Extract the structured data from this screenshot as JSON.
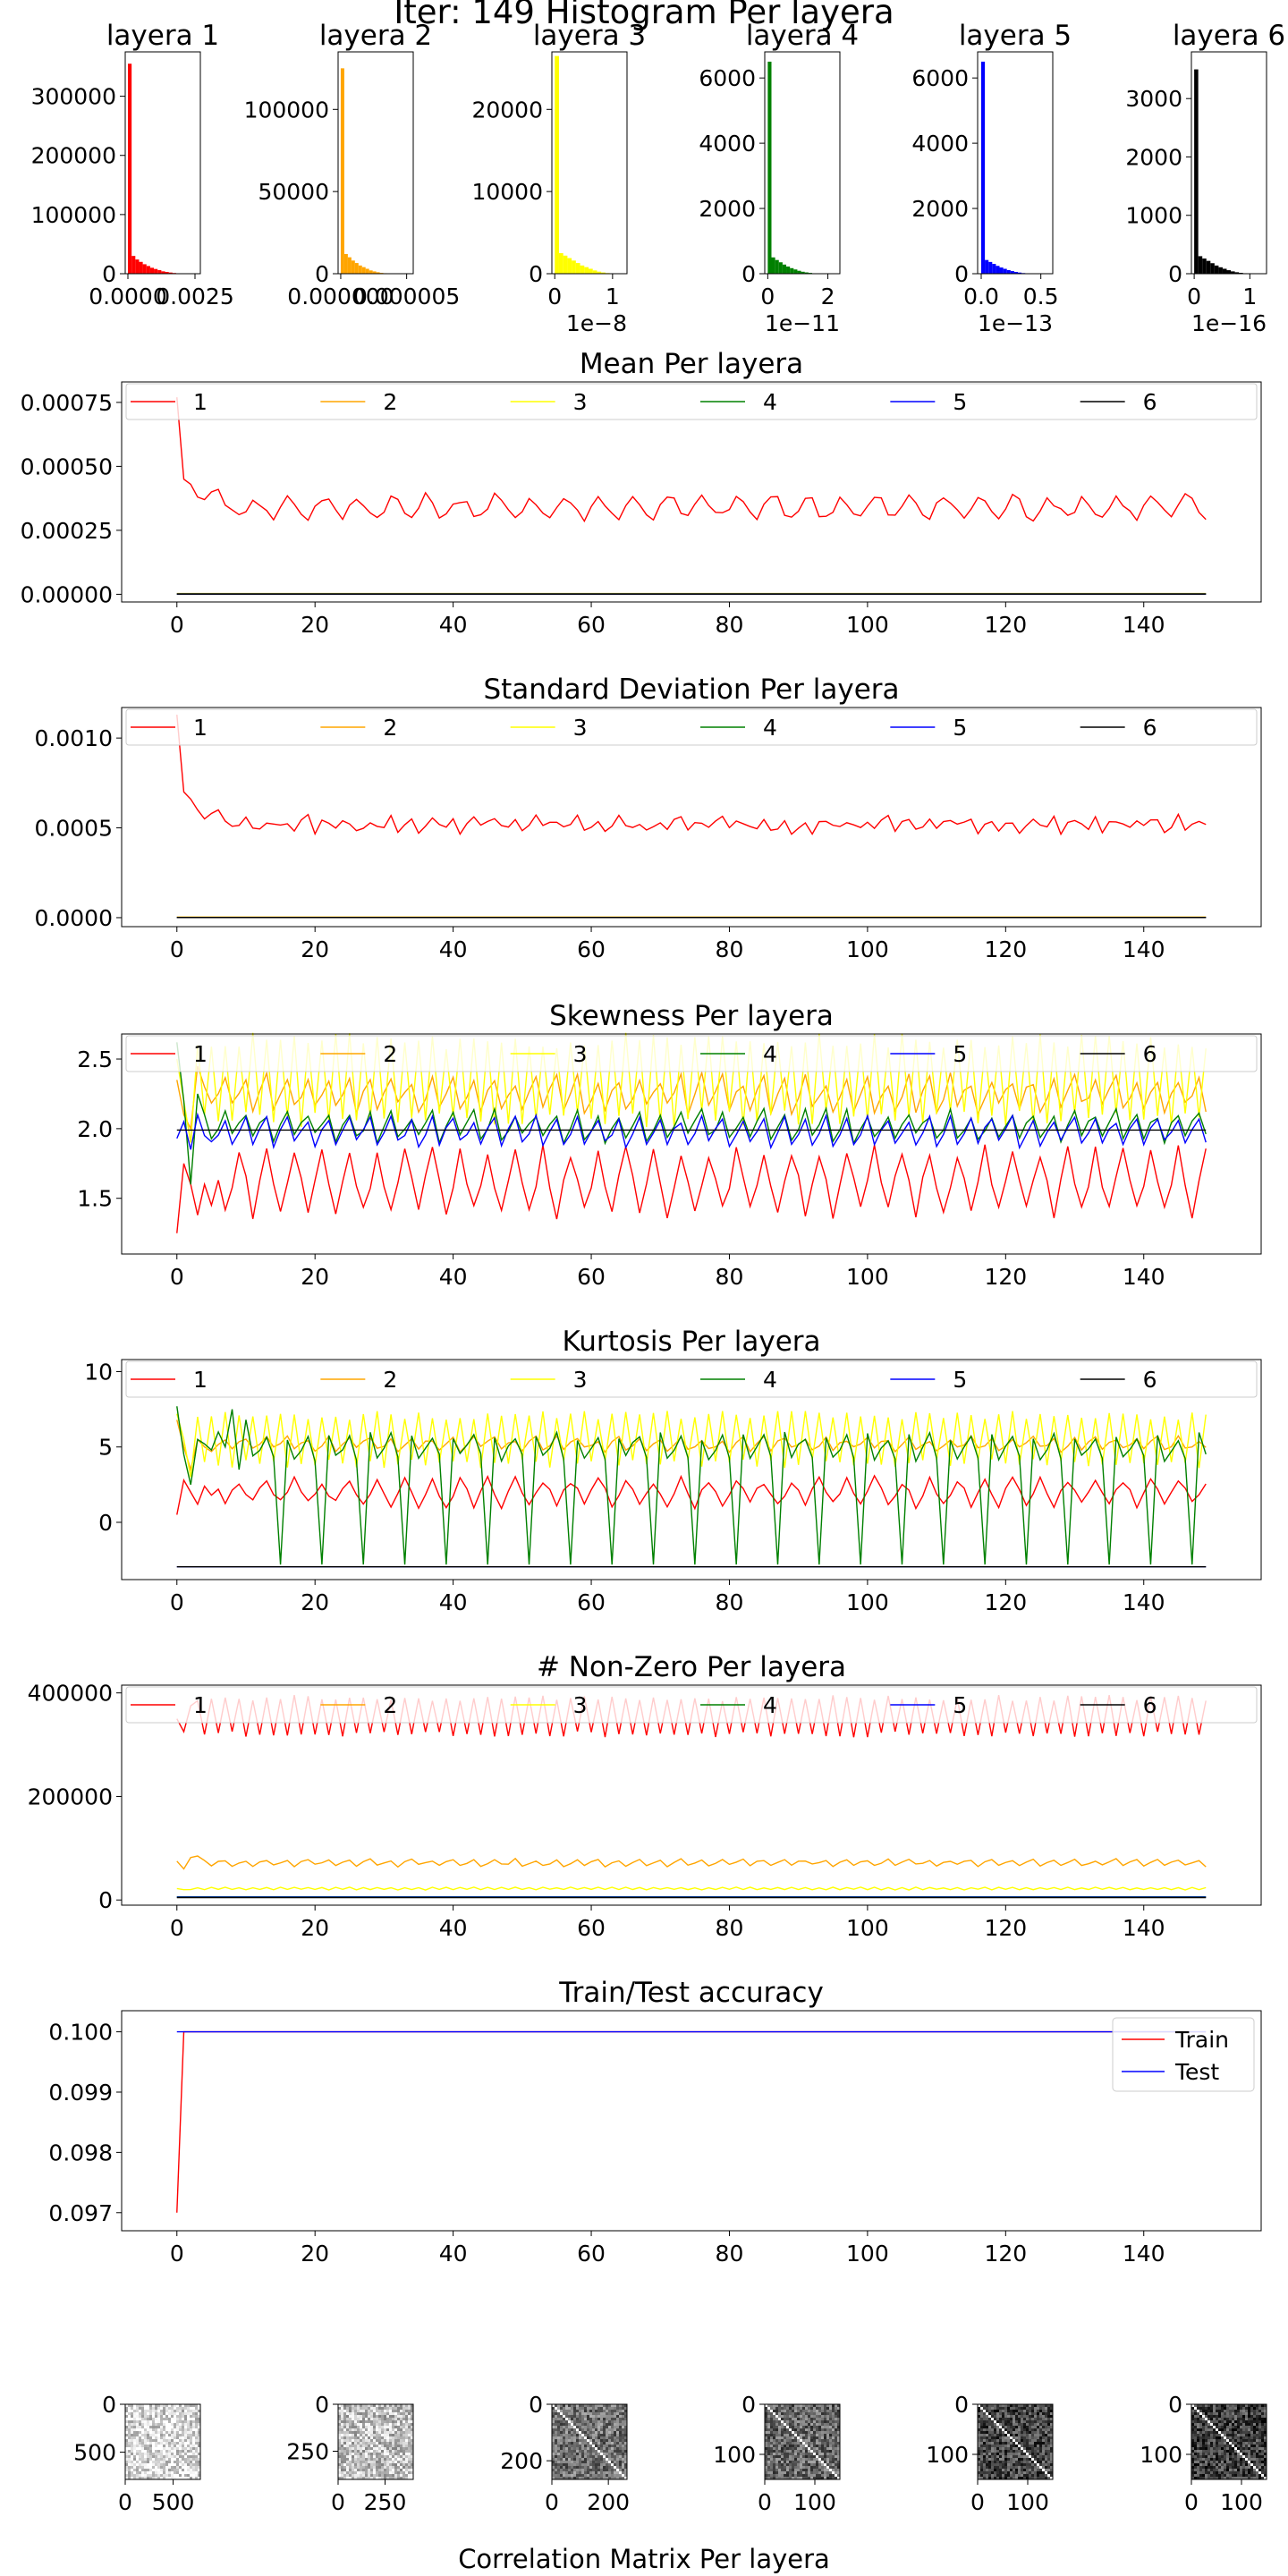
{
  "suptitle": "Iter: 149 Histogram Per layera",
  "bottom_title": "Correlation Matrix Per layera",
  "layer_colors": [
    "#ff0000",
    "#ffa500",
    "#ffff00",
    "#008000",
    "#0000ff",
    "#000000"
  ],
  "chart_data": [
    {
      "type": "histogram",
      "panels": [
        {
          "title": "layera 1",
          "color": "#ff0000",
          "xlim": [
            -0.0001,
            0.0027
          ],
          "ylim": [
            0,
            375000
          ],
          "yticks": [
            0,
            100000,
            200000,
            300000
          ],
          "ytick_labels": [
            "0",
            "100000",
            "200000",
            "300000"
          ],
          "xticks": [
            0.0,
            0.0025
          ],
          "xtick_labels": [
            "0.0000",
            "0.0025"
          ],
          "offset_label": "",
          "hist_x_max": 0.0018,
          "peak": 355000,
          "tail": [
            30000,
            24000,
            20000,
            16000,
            13000,
            10000,
            8000,
            6000,
            4000,
            3000,
            2000,
            1200
          ]
        },
        {
          "title": "layera 2",
          "color": "#ffa500",
          "xlim": [
            -2e-07,
            5.5e-06
          ],
          "ylim": [
            0,
            135000
          ],
          "yticks": [
            0,
            50000,
            100000
          ],
          "ytick_labels": [
            "0",
            "50000",
            "100000"
          ],
          "xticks": [
            0.0,
            5e-06
          ],
          "xtick_labels": [
            "0.000000",
            "0.000005"
          ],
          "offset_label": "",
          "hist_x_max": 3.5e-06,
          "peak": 125000,
          "tail": [
            12000,
            10000,
            8000,
            6500,
            5000,
            4000,
            3000,
            2000,
            1400,
            900,
            500,
            300
          ]
        },
        {
          "title": "layera 3",
          "color": "#ffff00",
          "xlim": [
            -0.05,
            1.25
          ],
          "ylim": [
            0,
            27000
          ],
          "yticks": [
            0,
            10000,
            20000
          ],
          "ytick_labels": [
            "0",
            "10000",
            "20000"
          ],
          "xticks": [
            0,
            1
          ],
          "xtick_labels": [
            "0",
            "1"
          ],
          "offset_label": "1e−8",
          "hist_x_max": 0.95,
          "peak": 26500,
          "tail": [
            2500,
            2200,
            1900,
            1600,
            1300,
            1000,
            800,
            600,
            400,
            250,
            150,
            80
          ]
        },
        {
          "title": "layera 4",
          "color": "#008000",
          "xlim": [
            -0.1,
            2.4
          ],
          "ylim": [
            0,
            6800
          ],
          "yticks": [
            0,
            2000,
            4000,
            6000
          ],
          "ytick_labels": [
            "0",
            "2000",
            "4000",
            "6000"
          ],
          "xticks": [
            0,
            2
          ],
          "xtick_labels": [
            "0",
            "2"
          ],
          "offset_label": "1e−11",
          "hist_x_max": 1.6,
          "peak": 6500,
          "tail": [
            500,
            420,
            350,
            280,
            220,
            170,
            130,
            90,
            60,
            40,
            25,
            12
          ]
        },
        {
          "title": "layera 5",
          "color": "#0000ff",
          "xlim": [
            -0.03,
            0.6
          ],
          "ylim": [
            0,
            6800
          ],
          "yticks": [
            0,
            2000,
            4000,
            6000
          ],
          "ytick_labels": [
            "0",
            "2000",
            "4000",
            "6000"
          ],
          "xticks": [
            0.0,
            0.5
          ],
          "xtick_labels": [
            "0.0",
            "0.5"
          ],
          "offset_label": "1e−13",
          "hist_x_max": 0.4,
          "peak": 6500,
          "tail": [
            420,
            360,
            300,
            240,
            190,
            150,
            110,
            80,
            55,
            35,
            20,
            10
          ]
        },
        {
          "title": "layera 6",
          "color": "#000000",
          "xlim": [
            -0.05,
            1.3
          ],
          "ylim": [
            0,
            3800
          ],
          "yticks": [
            0,
            1000,
            2000,
            3000
          ],
          "ytick_labels": [
            "0",
            "1000",
            "2000",
            "3000"
          ],
          "xticks": [
            0,
            1
          ],
          "xtick_labels": [
            "0",
            "1"
          ],
          "offset_label": "1e−16",
          "hist_x_max": 0.95,
          "peak": 3500,
          "tail": [
            300,
            260,
            220,
            180,
            140,
            110,
            85,
            60,
            40,
            25,
            15,
            8
          ]
        }
      ]
    },
    {
      "type": "line",
      "title": "Mean Per layera",
      "ylim": [
        -3e-05,
        0.00083
      ],
      "yticks": [
        0,
        0.00025,
        0.0005,
        0.00075
      ],
      "ytick_labels": [
        "0.00000",
        "0.00025",
        "0.00050",
        "0.00075"
      ],
      "legend": [
        "1",
        "2",
        "3",
        "4",
        "5",
        "6"
      ],
      "series": [
        {
          "name": "1",
          "start": [
            0.00077,
            0.00045,
            0.00043,
            0.00038,
            0.00037,
            0.0004,
            0.00041
          ],
          "base": 0.00034,
          "amp": 4e-05,
          "period": 5,
          "noise": 2e-05
        },
        {
          "name": "2",
          "const": 3e-06
        },
        {
          "name": "3",
          "const": 2e-06
        },
        {
          "name": "4",
          "const": 1e-06
        },
        {
          "name": "5",
          "const": 1e-06
        },
        {
          "name": "6",
          "const": 1e-06
        }
      ]
    },
    {
      "type": "line",
      "title": "Standard Deviation Per layera",
      "ylim": [
        -5e-05,
        0.00117
      ],
      "yticks": [
        0,
        0.0005,
        0.001
      ],
      "ytick_labels": [
        "0.0000",
        "0.0005",
        "0.0010"
      ],
      "legend": [
        "1",
        "2",
        "3",
        "4",
        "5",
        "6"
      ],
      "series": [
        {
          "name": "1",
          "start": [
            0.00113,
            0.0007,
            0.00066,
            0.0006,
            0.00055,
            0.00058,
            0.0006
          ],
          "base": 0.00052,
          "amp": 3e-05,
          "period": 3,
          "noise": 3e-05
        },
        {
          "name": "2",
          "const": 3e-06
        },
        {
          "name": "3",
          "const": 2e-06
        },
        {
          "name": "4",
          "const": 1e-06
        },
        {
          "name": "5",
          "const": 1e-06
        },
        {
          "name": "6",
          "const": 1e-06
        }
      ]
    },
    {
      "type": "line",
      "title": "Skewness Per layera",
      "ylim": [
        1.1,
        2.68
      ],
      "yticks": [
        1.5,
        2.0,
        2.5
      ],
      "ytick_labels": [
        "1.5",
        "2.0",
        "2.5"
      ],
      "legend": [
        "1",
        "2",
        "3",
        "4",
        "5",
        "6"
      ],
      "series": [
        {
          "name": "1",
          "start": [
            1.25,
            1.75,
            1.6,
            1.38,
            1.6,
            1.45
          ],
          "base": 1.62,
          "amp": 0.22,
          "period": 4,
          "noise": 0.05
        },
        {
          "name": "2",
          "start": [
            2.35,
            2.1,
            2.0,
            2.45,
            2.3
          ],
          "base": 2.25,
          "amp": 0.12,
          "period": 3,
          "noise": 0.05
        },
        {
          "name": "3",
          "start": [
            2.5,
            2.2,
            1.9,
            2.6,
            2.1
          ],
          "base": 2.35,
          "amp": 0.28,
          "period": 2,
          "noise": 0.06
        },
        {
          "name": "4",
          "start": [
            2.62,
            2.2,
            1.6,
            2.25,
            2.1
          ],
          "base": 2.02,
          "amp": 0.1,
          "period": 3,
          "noise": 0.04
        },
        {
          "name": "5",
          "start": [
            1.93,
            2.05,
            1.85,
            2.1,
            1.95
          ],
          "base": 1.98,
          "amp": 0.1,
          "period": 3,
          "noise": 0.03
        },
        {
          "name": "6",
          "const": 1.99
        }
      ]
    },
    {
      "type": "line",
      "title": "Kurtosis Per layera",
      "ylim": [
        -3.8,
        10.8
      ],
      "yticks": [
        0,
        5,
        10
      ],
      "ytick_labels": [
        "0",
        "5",
        "10"
      ],
      "legend": [
        "1",
        "2",
        "3",
        "4",
        "5",
        "6"
      ],
      "series": [
        {
          "name": "1",
          "start": [
            0.5,
            2.8,
            2.0,
            1.2,
            2.4,
            1.8
          ],
          "base": 2.0,
          "amp": 0.8,
          "period": 4,
          "noise": 0.3
        },
        {
          "name": "2",
          "start": [
            6.8,
            5.0,
            3.5,
            5.5,
            5.0
          ],
          "base": 5.2,
          "amp": 0.4,
          "period": 3,
          "noise": 0.2
        },
        {
          "name": "3",
          "start": [
            7.2,
            5.5,
            3.0,
            7.0,
            4.0
          ],
          "base": 5.5,
          "amp": 1.6,
          "period": 2,
          "noise": 0.3
        },
        {
          "name": "4",
          "start": [
            7.7,
            4.5,
            2.5,
            5.5,
            5.2,
            4.8,
            6.0,
            5.0,
            7.5,
            3.5,
            6.8
          ],
          "base": 5.0,
          "amp": 0.8,
          "period": 3,
          "noise": 0.3,
          "spike_every": 6,
          "spike_start": 15,
          "spike_value": -2.8
        },
        {
          "name": "5",
          "const": -2.95
        },
        {
          "name": "6",
          "const": -2.95
        }
      ]
    },
    {
      "type": "line",
      "title": "# Non-Zero Per layera",
      "ylim": [
        -10000,
        415000
      ],
      "yticks": [
        0,
        200000,
        400000
      ],
      "ytick_labels": [
        "0",
        "200000",
        "400000"
      ],
      "legend": [
        "1",
        "2",
        "3",
        "4",
        "5",
        "6"
      ],
      "series": [
        {
          "name": "1",
          "start": [
            350000,
            325000,
            375000
          ],
          "base": 355000,
          "amp": 35000,
          "period": 2,
          "noise": 6000
        },
        {
          "name": "2",
          "start": [
            75000,
            60000,
            82000,
            85000
          ],
          "base": 72000,
          "amp": 6000,
          "period": 3,
          "noise": 3000
        },
        {
          "name": "3",
          "start": [
            22000,
            20000
          ],
          "base": 22000,
          "amp": 2000,
          "period": 2,
          "noise": 800
        },
        {
          "name": "4",
          "const": 6000
        },
        {
          "name": "5",
          "const": 5500
        },
        {
          "name": "6",
          "const": 4500
        }
      ]
    },
    {
      "type": "line",
      "title": "Train/Test accuracy",
      "ylim": [
        0.0967,
        0.10035
      ],
      "yticks": [
        0.097,
        0.098,
        0.099,
        0.1
      ],
      "ytick_labels": [
        "0.097",
        "0.098",
        "0.099",
        "0.100"
      ],
      "legend": [
        "Train",
        "Test"
      ],
      "legend_loc": "upper right",
      "series": [
        {
          "name": "Train",
          "color": "#ff0000",
          "start": [
            0.097,
            0.1
          ],
          "const": 0.1
        },
        {
          "name": "Test",
          "color": "#0000ff",
          "const": 0.1
        }
      ]
    },
    {
      "type": "heatmap",
      "title": "Correlation Matrix Per layera",
      "panels": [
        {
          "size": 784,
          "yticks": [
            0,
            500
          ],
          "xticks": [
            0,
            500
          ],
          "ytick_labels": [
            "0",
            "500"
          ],
          "xtick_labels": [
            "0",
            "500"
          ],
          "darkness": 0.15
        },
        {
          "size": 400,
          "yticks": [
            0,
            250
          ],
          "xticks": [
            0,
            250
          ],
          "ytick_labels": [
            "0",
            "250"
          ],
          "xtick_labels": [
            "0",
            "250"
          ],
          "darkness": 0.25
        },
        {
          "size": 266,
          "yticks": [
            0,
            200
          ],
          "xticks": [
            0,
            200
          ],
          "ytick_labels": [
            "0",
            "200"
          ],
          "xtick_labels": [
            "0",
            "200"
          ],
          "darkness": 0.55
        },
        {
          "size": 150,
          "yticks": [
            0,
            100
          ],
          "xticks": [
            0,
            100
          ],
          "ytick_labels": [
            "0",
            "100"
          ],
          "xtick_labels": [
            "0",
            "100"
          ],
          "darkness": 0.6
        },
        {
          "size": 150,
          "yticks": [
            0,
            100
          ],
          "xticks": [
            0,
            100
          ],
          "ytick_labels": [
            "0",
            "100"
          ],
          "xtick_labels": [
            "0",
            "100"
          ],
          "darkness": 0.72
        },
        {
          "size": 150,
          "yticks": [
            0,
            100
          ],
          "xticks": [
            0,
            100
          ],
          "ytick_labels": [
            "0",
            "100"
          ],
          "xtick_labels": [
            "0",
            "100"
          ],
          "darkness": 0.75
        }
      ]
    }
  ]
}
